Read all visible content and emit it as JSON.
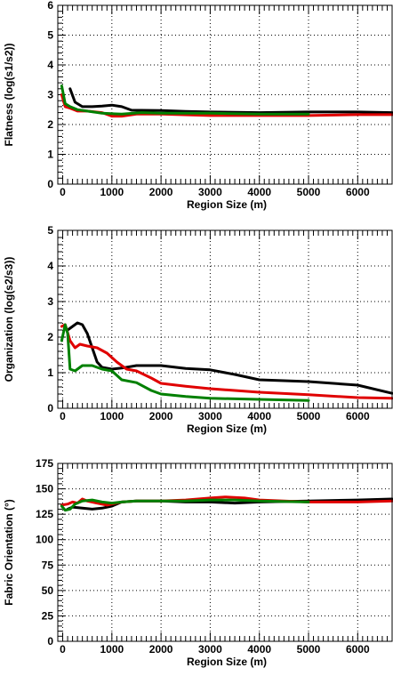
{
  "chart_data": [
    {
      "type": "line",
      "xlabel": "Region Size (m)",
      "ylabel": "Flatness (log(s1/s2))",
      "xlim": [
        -100,
        6700
      ],
      "ylim": [
        0,
        6
      ],
      "x_ticks": [
        0,
        1000,
        2000,
        3000,
        4000,
        5000,
        6000
      ],
      "y_ticks": [
        0,
        1,
        2,
        3,
        4,
        5,
        6
      ],
      "grid": true,
      "series": [
        {
          "color": "#000000",
          "x": [
            150,
            250,
            400,
            600,
            800,
            1000,
            1200,
            1400,
            2000,
            2500,
            3000,
            4000,
            5000,
            6000,
            6700
          ],
          "y": [
            3.2,
            2.75,
            2.6,
            2.6,
            2.62,
            2.65,
            2.6,
            2.48,
            2.47,
            2.44,
            2.42,
            2.4,
            2.42,
            2.42,
            2.4
          ]
        },
        {
          "color": "#e00000",
          "x": [
            -20,
            50,
            150,
            300,
            500,
            800,
            1000,
            1200,
            1500,
            2000,
            3000,
            4000,
            5000,
            6000,
            6700
          ],
          "y": [
            3.0,
            2.6,
            2.55,
            2.45,
            2.45,
            2.4,
            2.28,
            2.28,
            2.35,
            2.35,
            2.3,
            2.3,
            2.3,
            2.33,
            2.33
          ]
        },
        {
          "color": "#008000",
          "x": [
            -20,
            50,
            150,
            300,
            500,
            800,
            1200,
            1600,
            2000,
            3000,
            4000,
            5000
          ],
          "y": [
            3.3,
            2.7,
            2.6,
            2.5,
            2.45,
            2.38,
            2.35,
            2.4,
            2.38,
            2.38,
            2.35,
            2.35
          ]
        }
      ]
    },
    {
      "type": "line",
      "xlabel": "Region Size (m)",
      "ylabel": "Organization (log(s2/s3))",
      "xlim": [
        -100,
        6700
      ],
      "ylim": [
        0,
        5
      ],
      "x_ticks": [
        0,
        1000,
        2000,
        3000,
        4000,
        5000,
        6000
      ],
      "y_ticks": [
        0,
        1,
        2,
        3,
        4,
        5
      ],
      "grid": true,
      "series": [
        {
          "color": "#000000",
          "x": [
            100,
            200,
            300,
            400,
            500,
            600,
            700,
            800,
            1000,
            1200,
            1500,
            2000,
            2500,
            3000,
            3500,
            4000,
            5000,
            6000,
            6700
          ],
          "y": [
            2.2,
            2.3,
            2.4,
            2.35,
            2.1,
            1.7,
            1.3,
            1.15,
            1.1,
            1.13,
            1.2,
            1.2,
            1.12,
            1.08,
            0.95,
            0.8,
            0.75,
            0.65,
            0.42
          ]
        },
        {
          "color": "#e00000",
          "x": [
            -20,
            50,
            150,
            250,
            350,
            500,
            700,
            900,
            1100,
            1300,
            1500,
            1800,
            2000,
            2500,
            3000,
            4000,
            5000,
            6000,
            6700
          ],
          "y": [
            2.3,
            2.35,
            1.9,
            1.7,
            1.8,
            1.75,
            1.7,
            1.55,
            1.3,
            1.1,
            1.05,
            0.85,
            0.7,
            0.62,
            0.55,
            0.45,
            0.38,
            0.3,
            0.28
          ]
        },
        {
          "color": "#008000",
          "x": [
            -20,
            50,
            100,
            150,
            250,
            400,
            600,
            800,
            1000,
            1200,
            1500,
            1800,
            2000,
            2500,
            3000,
            4000,
            5000
          ],
          "y": [
            1.9,
            2.35,
            2.1,
            1.1,
            1.05,
            1.2,
            1.2,
            1.1,
            1.05,
            0.8,
            0.72,
            0.5,
            0.4,
            0.33,
            0.28,
            0.25,
            0.22
          ]
        }
      ]
    },
    {
      "type": "line",
      "xlabel": "Region Size (m)",
      "ylabel": "Fabric Orientation (°)",
      "xlim": [
        -100,
        6700
      ],
      "ylim": [
        0,
        175
      ],
      "x_ticks": [
        0,
        1000,
        2000,
        3000,
        4000,
        5000,
        6000
      ],
      "y_ticks": [
        0,
        25,
        50,
        75,
        100,
        125,
        150,
        175
      ],
      "grid": true,
      "series": [
        {
          "color": "#000000",
          "x": [
            100,
            200,
            400,
            600,
            800,
            1000,
            1200,
            1500,
            2000,
            2500,
            3000,
            3500,
            4000,
            5000,
            6000,
            6700
          ],
          "y": [
            130,
            132,
            131,
            130,
            131,
            133,
            137,
            138,
            138,
            137,
            137,
            136,
            137,
            138,
            139,
            140
          ]
        },
        {
          "color": "#e00000",
          "x": [
            -20,
            100,
            200,
            300,
            400,
            500,
            700,
            900,
            1200,
            1500,
            2000,
            2500,
            3000,
            3300,
            3700,
            4000,
            5000,
            6000,
            6700
          ],
          "y": [
            134,
            135,
            137,
            136,
            140,
            138,
            136,
            134,
            137,
            138,
            138,
            139,
            141,
            142,
            141,
            139,
            137,
            137,
            138
          ]
        },
        {
          "color": "#008000",
          "x": [
            -20,
            50,
            150,
            250,
            400,
            600,
            800,
            1000,
            1200,
            1500,
            2000,
            2500,
            3000,
            3500,
            4000,
            5000
          ],
          "y": [
            133,
            129,
            130,
            135,
            138,
            139,
            137,
            136,
            137,
            138,
            138,
            138,
            139,
            139,
            138,
            137
          ]
        }
      ]
    }
  ]
}
